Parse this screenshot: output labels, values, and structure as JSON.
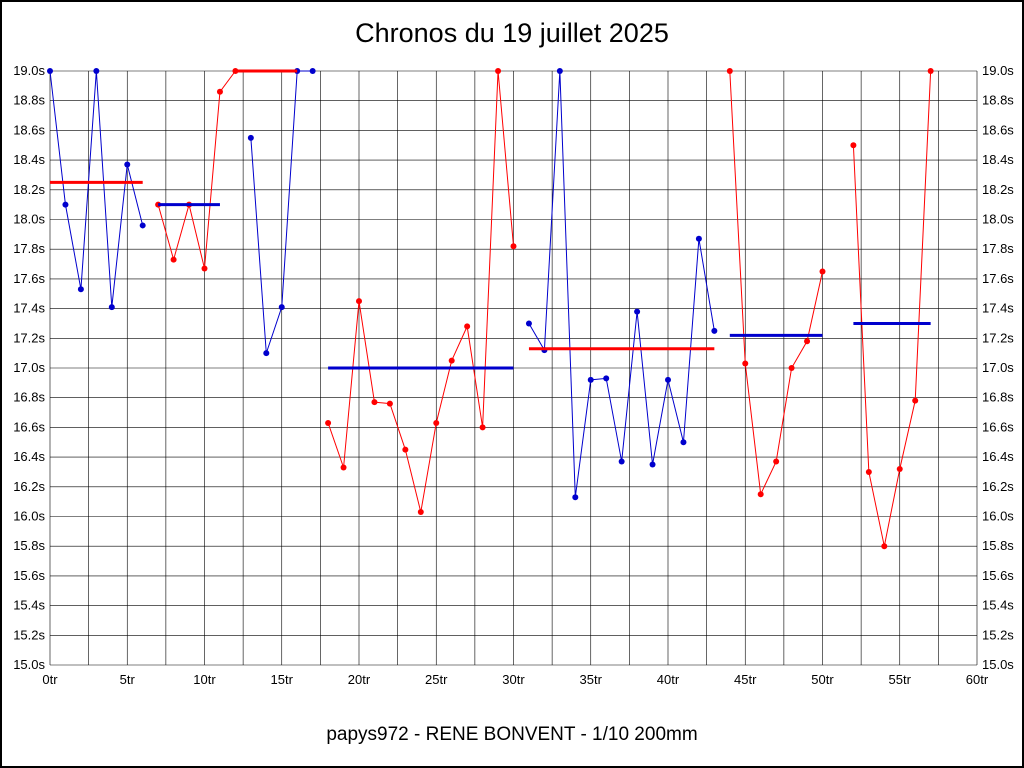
{
  "title": "Chronos du 19 juillet 2025",
  "footer": "papys972 - RENE BONVENT - 1/10 200mm",
  "colors": {
    "red": "#ff0000",
    "blue": "#0000cd",
    "grid": "#000000",
    "text": "#000000",
    "background": "#ffffff"
  },
  "chart_data": {
    "type": "line",
    "title": "Chronos du 19 juillet 2025",
    "subtitle": "papys972 - RENE BONVENT - 1/10 200mm",
    "xlabel": "",
    "ylabel": "",
    "x_unit": "tr",
    "y_unit": "s",
    "xlim": [
      0,
      60
    ],
    "ylim": [
      15.0,
      19.0
    ],
    "x_grid_step": 2.5,
    "y_tick_step": 0.2,
    "grid": true,
    "legend": "none",
    "x_ticks": [
      {
        "value": 0,
        "label": "0tr"
      },
      {
        "value": 5,
        "label": "5tr"
      },
      {
        "value": 10,
        "label": "10tr"
      },
      {
        "value": 15,
        "label": "15tr"
      },
      {
        "value": 20,
        "label": "20tr"
      },
      {
        "value": 25,
        "label": "25tr"
      },
      {
        "value": 30,
        "label": "30tr"
      },
      {
        "value": 35,
        "label": "35tr"
      },
      {
        "value": 40,
        "label": "40tr"
      },
      {
        "value": 45,
        "label": "45tr"
      },
      {
        "value": 50,
        "label": "50tr"
      },
      {
        "value": 55,
        "label": "55tr"
      },
      {
        "value": 60,
        "label": "60tr"
      }
    ],
    "y_ticks": [
      {
        "value": 19.0,
        "label": "19.0s"
      },
      {
        "value": 18.8,
        "label": "18.8s"
      },
      {
        "value": 18.6,
        "label": "18.6s"
      },
      {
        "value": 18.4,
        "label": "18.4s"
      },
      {
        "value": 18.2,
        "label": "18.2s"
      },
      {
        "value": 18.0,
        "label": "18.0s"
      },
      {
        "value": 17.8,
        "label": "17.8s"
      },
      {
        "value": 17.6,
        "label": "17.6s"
      },
      {
        "value": 17.4,
        "label": "17.4s"
      },
      {
        "value": 17.2,
        "label": "17.2s"
      },
      {
        "value": 17.0,
        "label": "17.0s"
      },
      {
        "value": 16.8,
        "label": "16.8s"
      },
      {
        "value": 16.6,
        "label": "16.6s"
      },
      {
        "value": 16.4,
        "label": "16.4s"
      },
      {
        "value": 16.2,
        "label": "16.2s"
      },
      {
        "value": 16.0,
        "label": "16.0s"
      },
      {
        "value": 15.8,
        "label": "15.8s"
      },
      {
        "value": 15.6,
        "label": "15.6s"
      },
      {
        "value": 15.4,
        "label": "15.4s"
      },
      {
        "value": 15.2,
        "label": "15.2s"
      },
      {
        "value": 15.0,
        "label": "15.0s"
      }
    ],
    "segments": [
      {
        "name": "run-1",
        "color": "blue",
        "start_lap": 0,
        "values": [
          19.0,
          18.1,
          17.53,
          19.0,
          17.41,
          18.37,
          17.96
        ]
      },
      {
        "name": "run-2",
        "color": "red",
        "start_lap": 7,
        "values": [
          18.1,
          17.73,
          18.1,
          17.67,
          18.86,
          19.0
        ]
      },
      {
        "name": "run-3",
        "color": "blue",
        "start_lap": 13,
        "values": [
          18.55,
          17.1,
          17.41,
          19.0,
          19.0
        ]
      },
      {
        "name": "run-4",
        "color": "red",
        "start_lap": 18,
        "values": [
          16.63,
          16.33,
          17.45,
          16.77,
          16.76,
          16.45,
          16.03,
          16.63,
          17.05,
          17.28,
          16.6,
          19.0,
          17.82
        ]
      },
      {
        "name": "run-5",
        "color": "blue",
        "start_lap": 31,
        "values": [
          17.3,
          17.12,
          19.0,
          16.13,
          16.92,
          16.93,
          16.37,
          17.38,
          16.35,
          16.92,
          16.5,
          17.87,
          17.25
        ]
      },
      {
        "name": "run-6",
        "color": "red",
        "start_lap": 44,
        "values": [
          19.0,
          17.03,
          16.15,
          16.37,
          17.0,
          17.18,
          17.65
        ]
      },
      {
        "name": "run-7",
        "color": "red",
        "start_lap": 52,
        "values": [
          18.5,
          16.3,
          15.8,
          16.32,
          16.78,
          19.0
        ]
      }
    ],
    "average_lines": [
      {
        "color": "red",
        "from": 0,
        "to": 6,
        "value": 18.25
      },
      {
        "color": "blue",
        "from": 7,
        "to": 11,
        "value": 18.1
      },
      {
        "color": "red",
        "from": 12,
        "to": 16,
        "value": 19.0
      },
      {
        "color": "blue",
        "from": 18,
        "to": 30,
        "value": 17.0
      },
      {
        "color": "red",
        "from": 31,
        "to": 43,
        "value": 17.13
      },
      {
        "color": "blue",
        "from": 44,
        "to": 50,
        "value": 17.22
      },
      {
        "color": "blue",
        "from": 52,
        "to": 57,
        "value": 17.3
      }
    ]
  }
}
